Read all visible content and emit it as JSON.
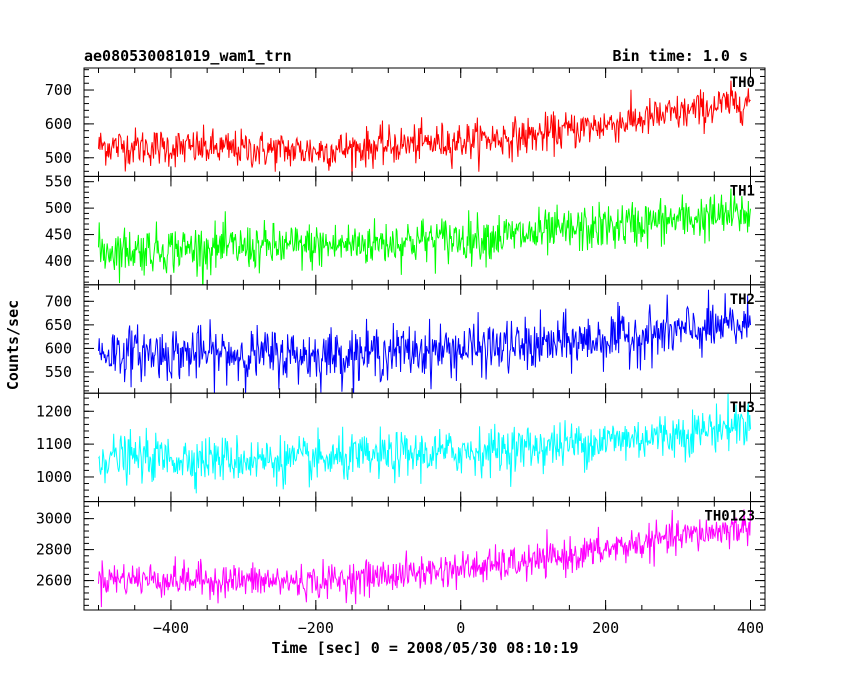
{
  "chart_data": {
    "type": "line",
    "title_left": "ae080530081019_wam1_trn",
    "title_right": "Bin time: 1.0 s",
    "xlabel": "Time [sec] 0 = 2008/05/30 08:10:19",
    "ylabel": "Counts/sec",
    "xlim": [
      -520,
      420
    ],
    "xticks": [
      -400,
      -200,
      0,
      200,
      400
    ],
    "panels": [
      {
        "name": "TH0",
        "color": "#ff0000",
        "ylim": [
          445,
          765
        ],
        "yticks": [
          500,
          600,
          700
        ],
        "trend": [
          [
            -500,
            535
          ],
          [
            -200,
            520
          ],
          [
            100,
            565
          ],
          [
            300,
            630
          ],
          [
            400,
            670
          ]
        ],
        "noise": 28
      },
      {
        "name": "TH1",
        "color": "#00ff00",
        "ylim": [
          355,
          560
        ],
        "yticks": [
          400,
          450,
          500,
          550
        ],
        "trend": [
          [
            -500,
            420
          ],
          [
            -200,
            428
          ],
          [
            100,
            450
          ],
          [
            300,
            478
          ],
          [
            400,
            490
          ]
        ],
        "noise": 22
      },
      {
        "name": "TH2",
        "color": "#0000ff",
        "ylim": [
          505,
          735
        ],
        "yticks": [
          550,
          600,
          650,
          700
        ],
        "trend": [
          [
            -500,
            592
          ],
          [
            -200,
            585
          ],
          [
            100,
            605
          ],
          [
            300,
            635
          ],
          [
            400,
            650
          ]
        ],
        "noise": 28
      },
      {
        "name": "TH3",
        "color": "#00ffff",
        "ylim": [
          925,
          1255
        ],
        "yticks": [
          1000,
          1100,
          1200
        ],
        "trend": [
          [
            -500,
            1060
          ],
          [
            -200,
            1050
          ],
          [
            100,
            1090
          ],
          [
            300,
            1130
          ],
          [
            400,
            1165
          ]
        ],
        "noise": 35
      },
      {
        "name": "TH0123",
        "color": "#ff00ff",
        "ylim": [
          2410,
          3110
        ],
        "yticks": [
          2600,
          2800,
          3000
        ],
        "trend": [
          [
            -500,
            2615
          ],
          [
            -200,
            2590
          ],
          [
            100,
            2720
          ],
          [
            300,
            2880
          ],
          [
            400,
            2950
          ]
        ],
        "noise": 55
      }
    ]
  }
}
